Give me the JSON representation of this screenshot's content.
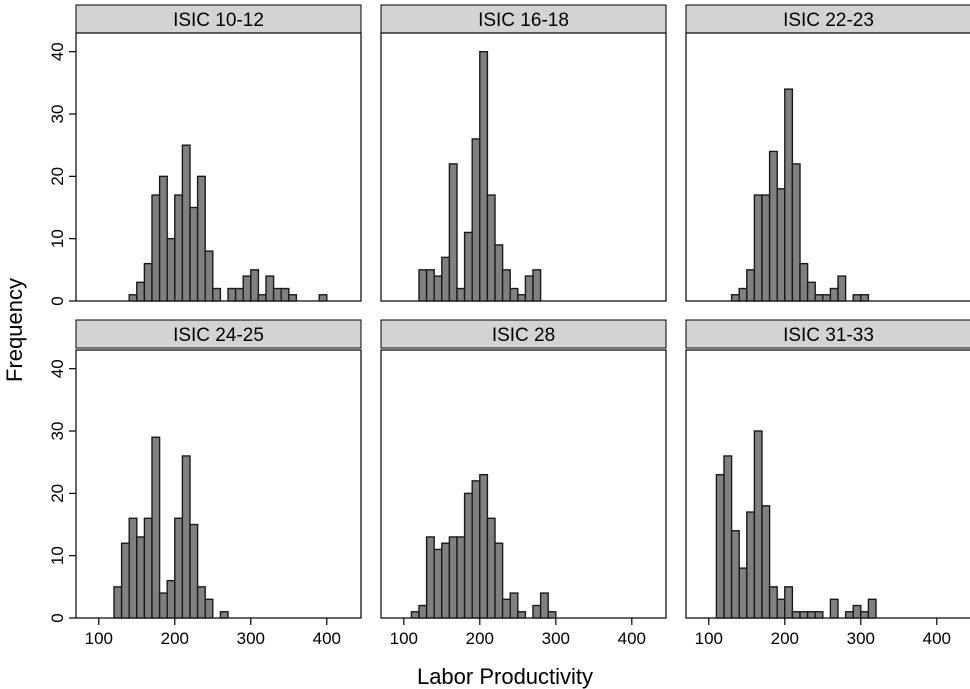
{
  "chart_data": {
    "type": "bar",
    "subtype": "histogram-facets",
    "xlabel": "Labor Productivity",
    "ylabel": "Frequency",
    "xlim": [
      70,
      445
    ],
    "ylim": [
      0,
      43
    ],
    "x_ticks": [
      100,
      200,
      300,
      400
    ],
    "y_ticks": [
      0,
      10,
      20,
      30,
      40
    ],
    "bin_width": 10,
    "grid": false,
    "colors": {
      "bar_fill": "#808080",
      "bar_stroke": "#1a1a1a",
      "strip_fill": "#d3d3d3"
    },
    "panels": [
      {
        "name": "ISIC 10-12",
        "bins": [
          [
            140,
            1
          ],
          [
            150,
            3
          ],
          [
            160,
            6
          ],
          [
            170,
            17
          ],
          [
            180,
            20
          ],
          [
            190,
            10
          ],
          [
            200,
            17
          ],
          [
            210,
            25
          ],
          [
            220,
            15
          ],
          [
            230,
            20
          ],
          [
            240,
            8
          ],
          [
            250,
            2
          ],
          [
            260,
            0
          ],
          [
            270,
            2
          ],
          [
            280,
            2
          ],
          [
            290,
            4
          ],
          [
            300,
            5
          ],
          [
            310,
            1
          ],
          [
            320,
            4
          ],
          [
            330,
            2
          ],
          [
            340,
            2
          ],
          [
            350,
            1
          ],
          [
            360,
            0
          ],
          [
            370,
            0
          ],
          [
            380,
            0
          ],
          [
            390,
            1
          ]
        ]
      },
      {
        "name": "ISIC 16-18",
        "bins": [
          [
            120,
            5
          ],
          [
            130,
            5
          ],
          [
            140,
            4
          ],
          [
            150,
            7
          ],
          [
            160,
            22
          ],
          [
            170,
            2
          ],
          [
            180,
            11
          ],
          [
            190,
            26
          ],
          [
            200,
            40
          ],
          [
            210,
            17
          ],
          [
            220,
            9
          ],
          [
            230,
            5
          ],
          [
            240,
            2
          ],
          [
            250,
            1
          ],
          [
            260,
            4
          ],
          [
            270,
            5
          ]
        ]
      },
      {
        "name": "ISIC 22-23",
        "bins": [
          [
            130,
            1
          ],
          [
            140,
            2
          ],
          [
            150,
            5
          ],
          [
            160,
            17
          ],
          [
            170,
            17
          ],
          [
            180,
            24
          ],
          [
            190,
            18
          ],
          [
            200,
            34
          ],
          [
            210,
            22
          ],
          [
            220,
            6
          ],
          [
            230,
            3
          ],
          [
            240,
            1
          ],
          [
            250,
            1
          ],
          [
            260,
            2
          ],
          [
            270,
            4
          ],
          [
            280,
            0
          ],
          [
            290,
            1
          ],
          [
            300,
            1
          ]
        ]
      },
      {
        "name": "ISIC 24-25",
        "bins": [
          [
            120,
            5
          ],
          [
            130,
            12
          ],
          [
            140,
            16
          ],
          [
            150,
            13
          ],
          [
            160,
            16
          ],
          [
            170,
            29
          ],
          [
            180,
            4
          ],
          [
            190,
            6
          ],
          [
            200,
            16
          ],
          [
            210,
            26
          ],
          [
            220,
            15
          ],
          [
            230,
            5
          ],
          [
            240,
            3
          ],
          [
            250,
            0
          ],
          [
            260,
            1
          ]
        ]
      },
      {
        "name": "ISIC 28",
        "bins": [
          [
            110,
            1
          ],
          [
            120,
            2
          ],
          [
            130,
            13
          ],
          [
            140,
            11
          ],
          [
            150,
            12
          ],
          [
            160,
            13
          ],
          [
            170,
            13
          ],
          [
            180,
            20
          ],
          [
            190,
            22
          ],
          [
            200,
            23
          ],
          [
            210,
            16
          ],
          [
            220,
            12
          ],
          [
            230,
            3
          ],
          [
            240,
            4
          ],
          [
            250,
            1
          ],
          [
            260,
            0
          ],
          [
            270,
            2
          ],
          [
            280,
            4
          ],
          [
            290,
            1
          ]
        ]
      },
      {
        "name": "ISIC 31-33",
        "bins": [
          [
            110,
            23
          ],
          [
            120,
            26
          ],
          [
            130,
            14
          ],
          [
            140,
            8
          ],
          [
            150,
            17
          ],
          [
            160,
            30
          ],
          [
            170,
            18
          ],
          [
            180,
            5
          ],
          [
            190,
            3
          ],
          [
            200,
            5
          ],
          [
            210,
            1
          ],
          [
            220,
            1
          ],
          [
            230,
            1
          ],
          [
            240,
            1
          ],
          [
            250,
            0
          ],
          [
            260,
            3
          ],
          [
            270,
            0
          ],
          [
            280,
            1
          ],
          [
            290,
            2
          ],
          [
            300,
            1
          ],
          [
            310,
            3
          ]
        ]
      }
    ]
  }
}
